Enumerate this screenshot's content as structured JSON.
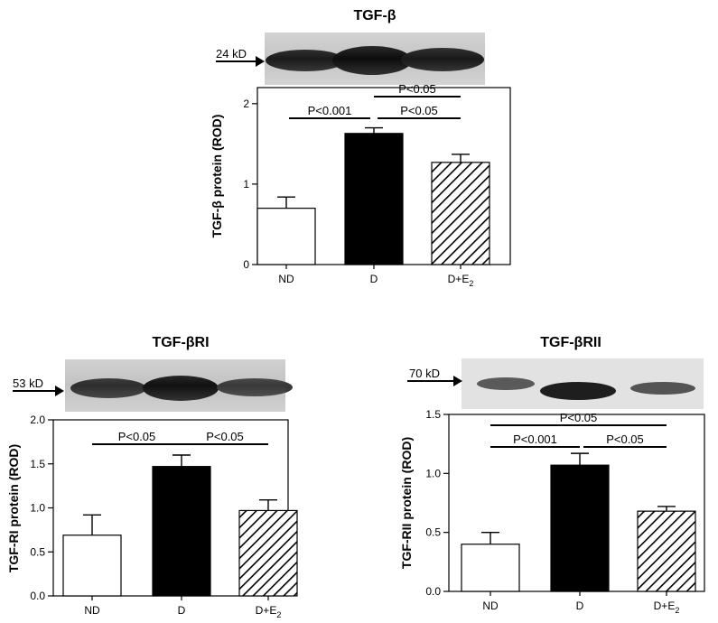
{
  "chart_data": [
    {
      "type": "bar",
      "title": "TGF-β",
      "marker_label": "24 kD",
      "ylabel": "TGF-β protein (ROD)",
      "categories": [
        "ND",
        "D",
        "D+E₂"
      ],
      "values": [
        0.7,
        1.63,
        1.27
      ],
      "errors": [
        0.14,
        0.07,
        0.1
      ],
      "fills": [
        "white",
        "black",
        "hatch"
      ],
      "ylim": [
        0,
        2.2
      ],
      "yticks": [
        0,
        1,
        2
      ],
      "ytick_labels": [
        "0",
        "1",
        "2"
      ],
      "comparisons": [
        {
          "label": "P<0.05",
          "from": 1,
          "to": 2,
          "level": 0
        },
        {
          "label": "P<0.001",
          "from": 1,
          "to": 1,
          "level": 1
        },
        {
          "label": "P<0.05",
          "from": 1,
          "to": 2,
          "level": 1
        }
      ]
    },
    {
      "type": "bar",
      "title": "TGF-βRI",
      "marker_label": "53 kD",
      "ylabel": "TGF-RI protein (ROD)",
      "categories": [
        "ND",
        "D",
        "D+E₂"
      ],
      "values": [
        0.69,
        1.47,
        0.97
      ],
      "errors": [
        0.23,
        0.13,
        0.12
      ],
      "fills": [
        "white",
        "black",
        "hatch"
      ],
      "ylim": [
        0,
        2.0
      ],
      "yticks": [
        0,
        0.5,
        1.0,
        1.5,
        2.0
      ],
      "ytick_labels": [
        "0.0",
        "0.5",
        "1.0",
        "1.5",
        "2.0"
      ],
      "comparisons": [
        {
          "label": "P<0.05",
          "from": 0,
          "to": 1,
          "level": 0
        },
        {
          "label": "P<0.05",
          "from": 1,
          "to": 2,
          "level": 0
        }
      ]
    },
    {
      "type": "bar",
      "title": "TGF-βRII",
      "marker_label": "70 kD",
      "ylabel": "TGF-RII protein (ROD)",
      "categories": [
        "ND",
        "D",
        "D+E₂"
      ],
      "values": [
        0.4,
        1.07,
        0.68
      ],
      "errors": [
        0.1,
        0.1,
        0.04
      ],
      "fills": [
        "white",
        "black",
        "hatch"
      ],
      "ylim": [
        0,
        1.5
      ],
      "yticks": [
        0,
        0.5,
        1.0,
        1.5
      ],
      "ytick_labels": [
        "0.0",
        "0.5",
        "1.0",
        "1.5"
      ],
      "comparisons": [
        {
          "label": "P<0.05",
          "from": 0,
          "to": 2,
          "level": 0
        },
        {
          "label": "P<0.001",
          "from": 0,
          "to": 1,
          "level": 1
        },
        {
          "label": "P<0.05",
          "from": 1,
          "to": 2,
          "level": 1
        }
      ]
    }
  ]
}
